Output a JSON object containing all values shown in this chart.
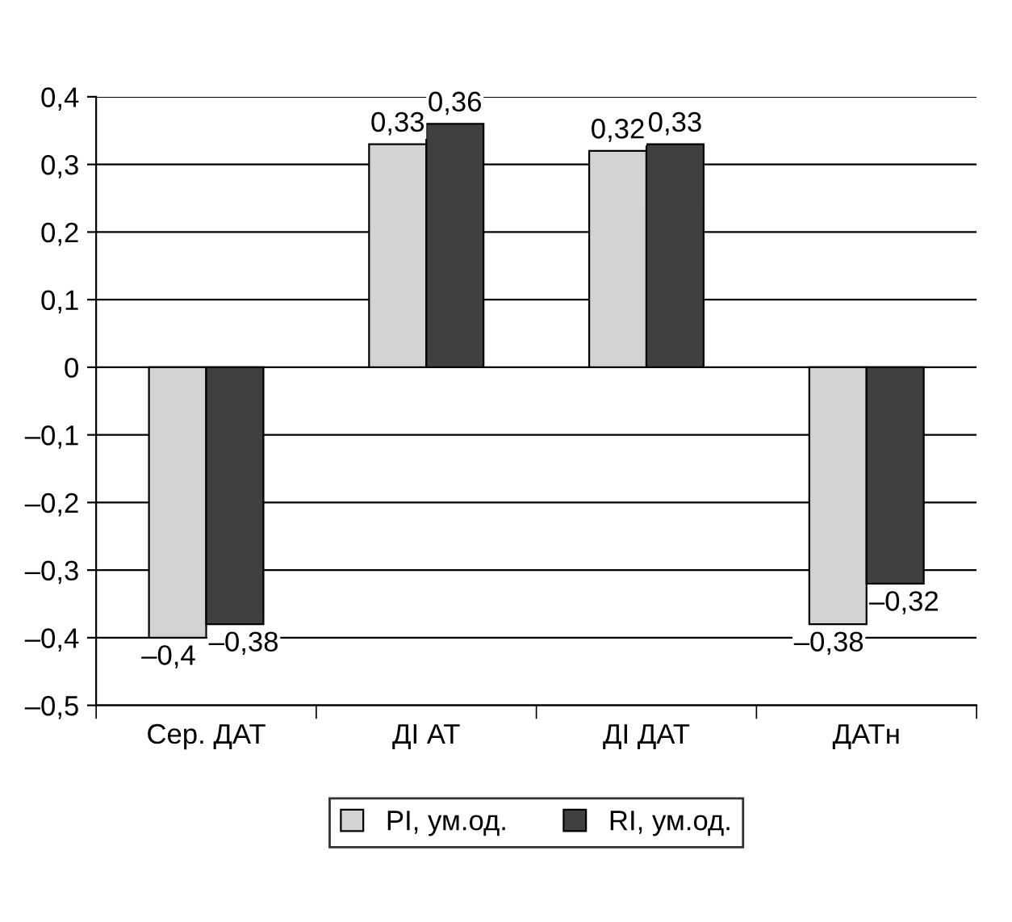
{
  "chart_data": {
    "type": "bar",
    "categories": [
      "Сер. ДАТ",
      "ДІ АТ",
      "ДІ ДАТ",
      "ДАТн"
    ],
    "series": [
      {
        "name": "РІ, ум.од.",
        "color": "#d3d3d3",
        "values": [
          -0.4,
          0.33,
          0.32,
          -0.38
        ],
        "value_labels": [
          "–0,4",
          "0,33",
          "0,32",
          "–0,38"
        ]
      },
      {
        "name": "RI, ум.од.",
        "color": "#404040",
        "values": [
          -0.38,
          0.36,
          0.33,
          -0.32
        ],
        "value_labels": [
          "–0,38",
          "0,36",
          "0,33",
          "–0,32"
        ]
      }
    ],
    "ylim": [
      -0.5,
      0.4
    ],
    "yticks": [
      {
        "value": -0.5,
        "label": "–0,5"
      },
      {
        "value": -0.4,
        "label": "–0,4"
      },
      {
        "value": -0.3,
        "label": "–0,3"
      },
      {
        "value": -0.2,
        "label": "–0,2"
      },
      {
        "value": -0.1,
        "label": "–0,1"
      },
      0,
      {
        "value": 0.1,
        "label": "0,1"
      },
      {
        "value": 0.2,
        "label": "0,2"
      },
      {
        "value": 0.3,
        "label": "0,3"
      },
      {
        "value": 0.4,
        "label": "0,4"
      }
    ],
    "grid": "y",
    "legend": "bottom"
  }
}
